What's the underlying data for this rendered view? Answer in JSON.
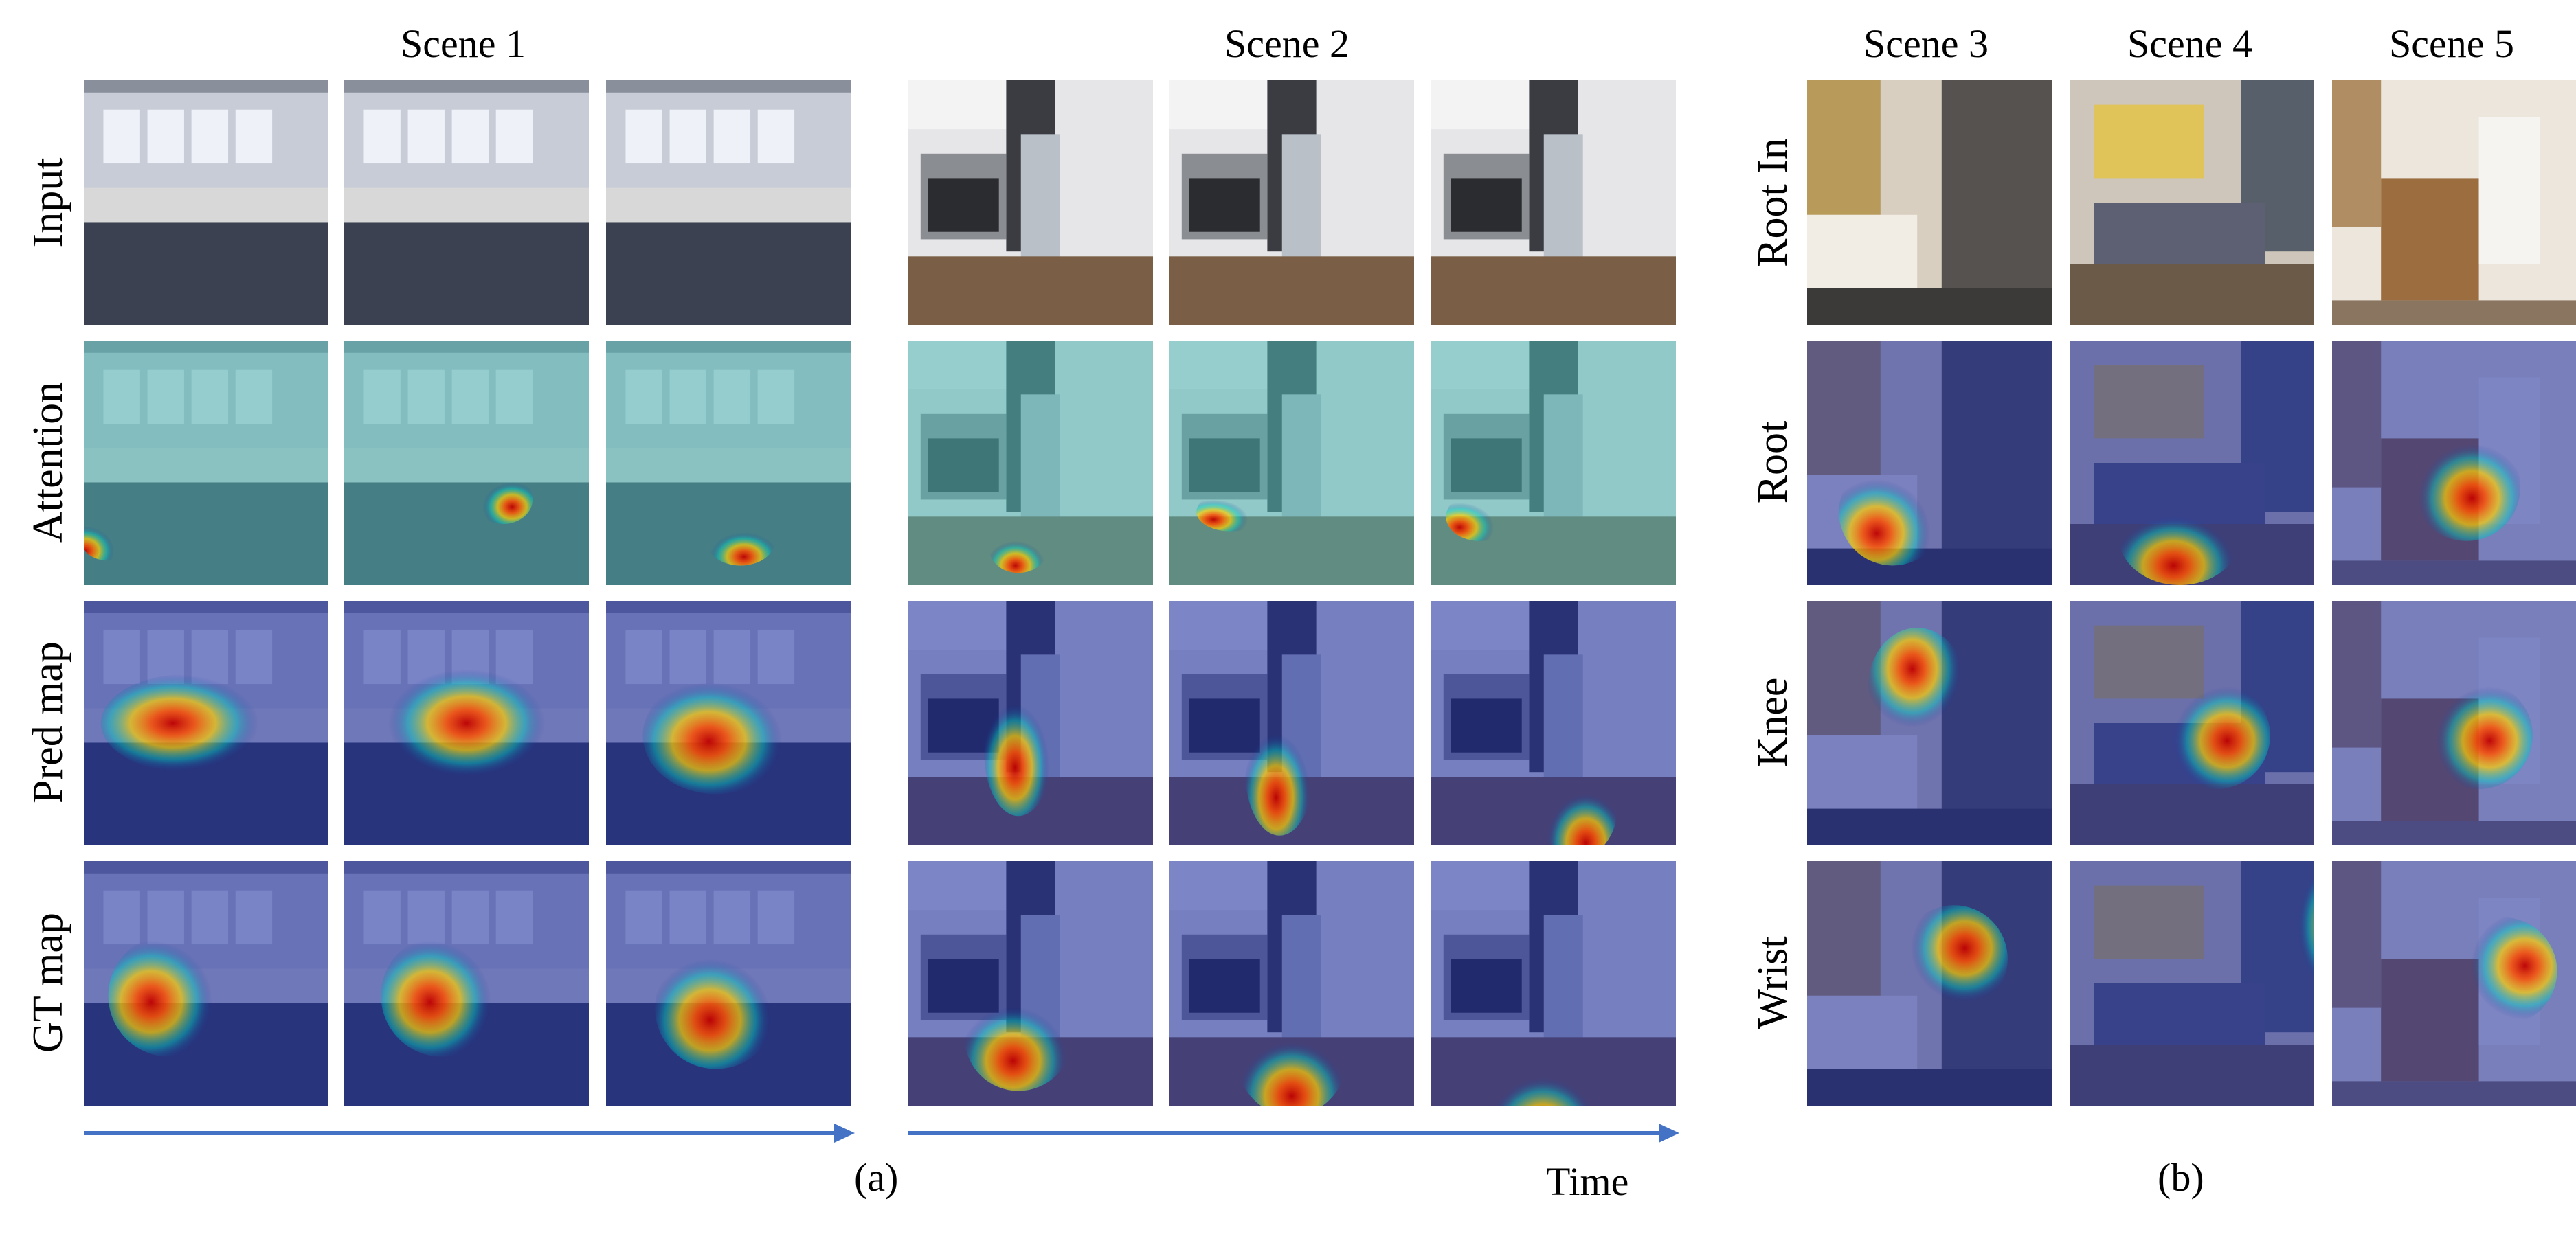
{
  "panel_a": {
    "scenes": [
      "Scene 1",
      "Scene 2"
    ],
    "rows": [
      "Input",
      "Attention",
      "Pred map",
      "GT map"
    ],
    "caption": "(a)",
    "axis_label": "Time",
    "frames_per_scene": 3
  },
  "panel_b": {
    "scenes": [
      "Scene 3",
      "Scene 4",
      "Scene 5"
    ],
    "rows": [
      "Root In",
      "Root",
      "Knee",
      "Wrist"
    ],
    "caption": "(b)"
  },
  "colors": {
    "arrow": "#4472c4",
    "heat_hot": "#c00000",
    "heat_warm": "#ffd000",
    "heat_cool": "#00d0c0",
    "overlay_cold": "#1a2a9e"
  }
}
